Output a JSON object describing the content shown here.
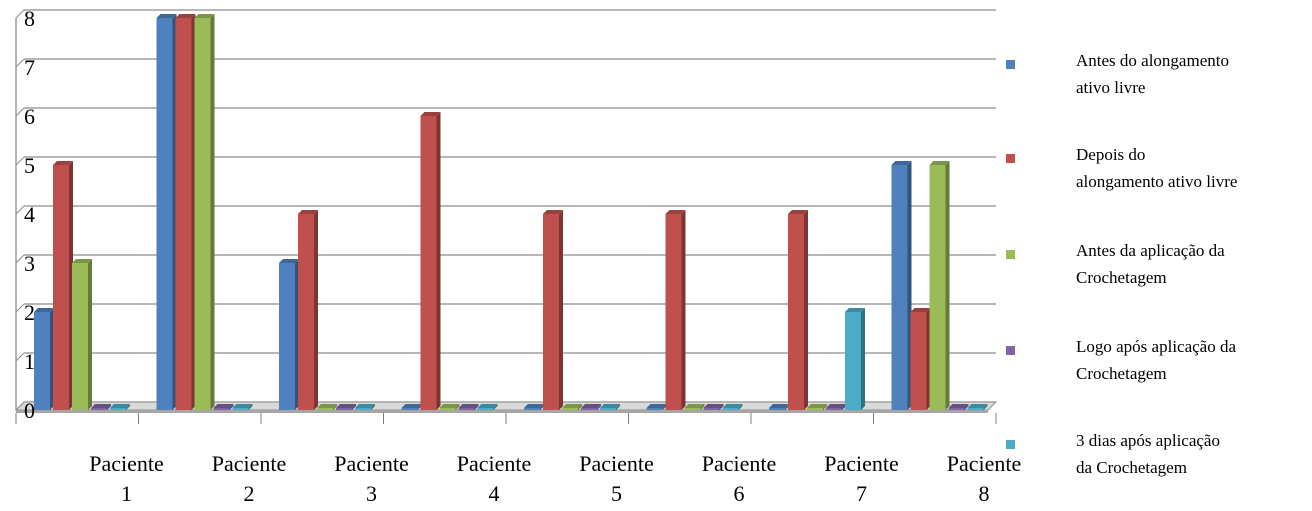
{
  "chart_data": {
    "type": "bar",
    "title": "",
    "xlabel": "",
    "ylabel": "",
    "ylim": [
      0,
      8
    ],
    "yticks": [
      "0",
      "1",
      "2",
      "3",
      "4",
      "5",
      "6",
      "7",
      "8"
    ],
    "grid": true,
    "legend_position": "right",
    "categories": [
      [
        "Paciente",
        "1"
      ],
      [
        "Paciente",
        "2"
      ],
      [
        "Paciente",
        "3"
      ],
      [
        "Paciente",
        "4"
      ],
      [
        "Paciente",
        "5"
      ],
      [
        "Paciente",
        "6"
      ],
      [
        "Paciente",
        "7"
      ],
      [
        "Paciente",
        "8"
      ]
    ],
    "series": [
      {
        "name": [
          "Antes do alongamento",
          "ativo livre"
        ],
        "color": "#4F81BD",
        "values": [
          2,
          8,
          3,
          0,
          0,
          0,
          0,
          5
        ]
      },
      {
        "name": [
          "Depois do",
          "alongamento ativo livre"
        ],
        "color": "#C0504D",
        "values": [
          5,
          8,
          4,
          6,
          4,
          4,
          4,
          2
        ]
      },
      {
        "name": [
          "Antes da aplicação da",
          "Crochetagem"
        ],
        "color": "#9BBB59",
        "values": [
          3,
          8,
          0,
          0,
          0,
          0,
          0,
          5
        ]
      },
      {
        "name": [
          "Logo após aplicação da",
          "Crochetagem"
        ],
        "color": "#8064A2",
        "values": [
          0,
          0,
          0,
          0,
          0,
          0,
          0,
          0
        ]
      },
      {
        "name": [
          "3 dias após aplicação",
          "da Crochetagem"
        ],
        "color": "#4BACC6",
        "values": [
          0,
          0,
          0,
          0,
          0,
          0,
          2,
          0
        ]
      }
    ]
  }
}
